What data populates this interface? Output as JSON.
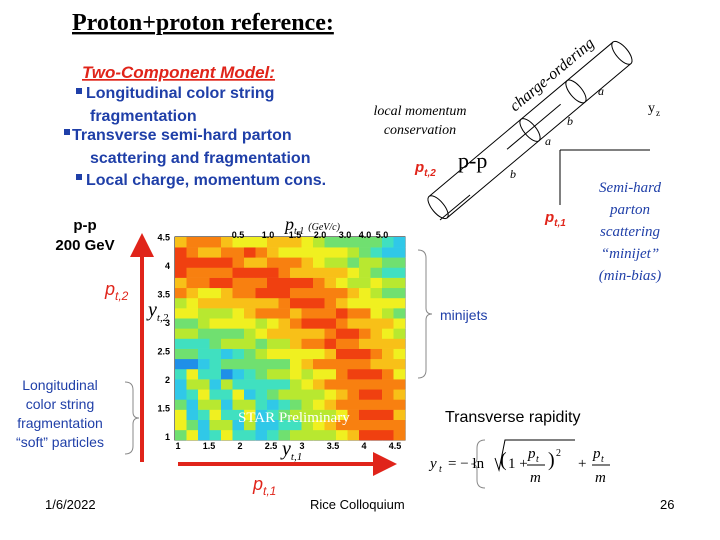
{
  "title": "Proton+proton reference:",
  "model": {
    "heading": "Two-Component Model:",
    "bullets": [
      "Longitudinal color string",
      "fragmentation",
      "Transverse semi-hard parton",
      "scattering and fragmentation",
      "Local charge, momentum cons."
    ]
  },
  "system": [
    "p-p",
    "200 GeV"
  ],
  "diagram": {
    "charge": "charge-ordering",
    "local": [
      "local momentum",
      "conservation"
    ],
    "pp": "p-p",
    "pt2": {
      "main": "p",
      "sub": "t,2"
    },
    "pt1": {
      "main": "p",
      "sub": "t,1"
    },
    "parts": [
      "a",
      "b",
      "a",
      "b",
      "y",
      "z"
    ]
  },
  "semihard": [
    "Semi-hard",
    "parton",
    "scattering",
    "“minijet”",
    "(min-bias)"
  ],
  "minijets": "minijets",
  "soft": [
    "Longitudinal",
    "color string",
    "fragmentation",
    "“soft” particles"
  ],
  "rapidity": "Transverse rapidity",
  "plot": {
    "top_axis": {
      "main": "p",
      "sub": "t,1",
      "unit": "(GeV/c)"
    },
    "top_ticks": [
      "0.5",
      "1.0",
      "1.5",
      "2.0",
      "3.0",
      "4.0",
      "5.0"
    ],
    "left_axis": {
      "main": "y",
      "sub": "t,2"
    },
    "left_ticks": [
      "1",
      "1.5",
      "2",
      "2.5",
      "3",
      "3.5",
      "4",
      "4.5"
    ],
    "bottom_axis": {
      "main": "y",
      "sub": "t,1"
    },
    "bottom_ticks": [
      "1",
      "1.5",
      "2",
      "2.5",
      "3",
      "3.5",
      "4",
      "4.5"
    ],
    "watermark": "STAR Preliminary"
  },
  "arrows": {
    "pt2": {
      "main": "p",
      "sub": "t,2"
    },
    "pt1": {
      "main": "p",
      "sub": "t,1"
    }
  },
  "formula": {
    "lhs": "y",
    "lhs_sub": "t",
    "eq": "= − ln",
    "one": "1 +",
    "p": "p",
    "t": "t",
    "m": "m",
    "sq": "2",
    "plus": "+"
  },
  "footer": {
    "date": "1/6/2022",
    "venue": "Rice Colloquium",
    "page": "26"
  }
}
